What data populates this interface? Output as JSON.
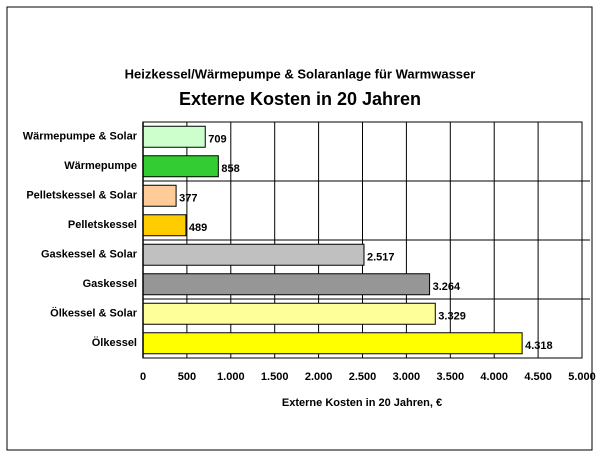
{
  "chart_data": {
    "type": "barh",
    "title": "Heizkessel/Wärmepumpe & Solaranlage für Warmwasser",
    "subtitle": "Externe Kosten in 20 Jahren",
    "xlabel": "Externe Kosten in 20 Jahren, €",
    "categories": [
      "Wärmepumpe & Solar",
      "Wärmepumpe",
      "Pelletskessel & Solar",
      "Pelletskessel",
      "Gaskessel & Solar",
      "Gaskessel",
      "Ölkessel & Solar",
      "Ölkessel"
    ],
    "values": [
      709,
      858,
      377,
      489,
      2517,
      3264,
      3329,
      4318
    ],
    "value_labels": [
      "709",
      "858",
      "377",
      "489",
      "2.517",
      "3.264",
      "3.329",
      "4.318"
    ],
    "colors": [
      "#ccffcc",
      "#33cc33",
      "#ffcc99",
      "#ffcc00",
      "#c0c0c0",
      "#969696",
      "#ffff99",
      "#ffff00"
    ],
    "xlim": [
      0,
      5000
    ],
    "xticks": [
      0,
      500,
      {
        "value": 1000,
        "label": "1.000"
      },
      {
        "value": 1500,
        "label": "1.500"
      },
      {
        "value": 2000,
        "label": "2.000"
      },
      {
        "value": 2500,
        "label": "2.500"
      },
      {
        "value": 3000,
        "label": "3.000"
      },
      {
        "value": 3500,
        "label": "3.500"
      },
      {
        "value": 4000,
        "label": "4.000"
      },
      {
        "value": 4500,
        "label": "4.500"
      },
      {
        "value": 5000,
        "label": "5.000"
      }
    ],
    "grid": true
  }
}
